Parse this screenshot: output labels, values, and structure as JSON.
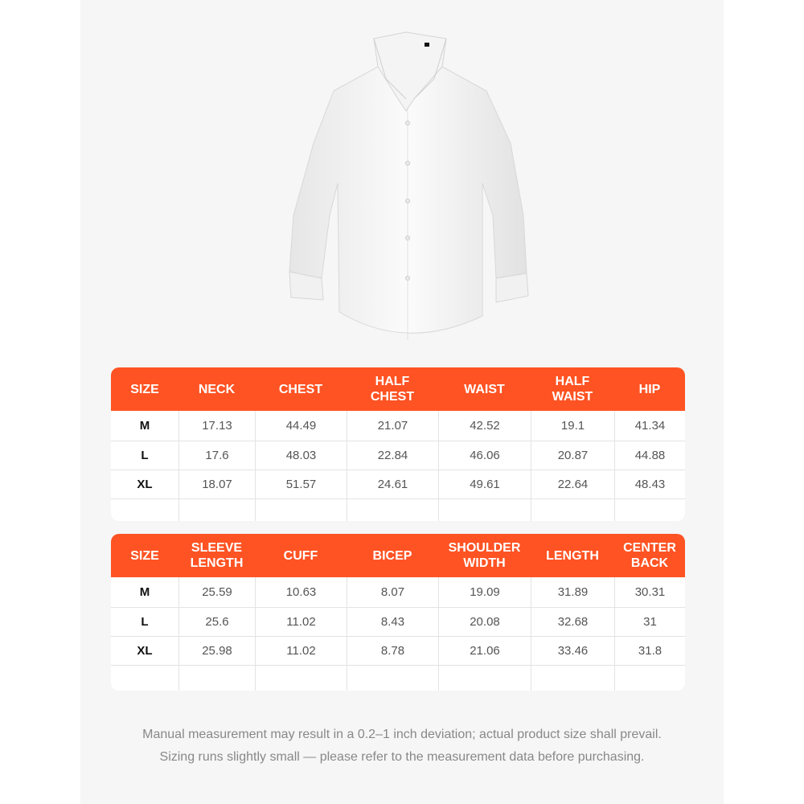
{
  "brand_color": "#ff5323",
  "table1": {
    "headers": [
      "SIZE",
      "NECK",
      "CHEST",
      "HALF\nCHEST",
      "WAIST",
      "HALF\nWAIST",
      "HIP"
    ],
    "rows": [
      [
        "M",
        "17.13",
        "44.49",
        "21.07",
        "42.52",
        "19.1",
        "41.34"
      ],
      [
        "L",
        "17.6",
        "48.03",
        "22.84",
        "46.06",
        "20.87",
        "44.88"
      ],
      [
        "XL",
        "18.07",
        "51.57",
        "24.61",
        "49.61",
        "22.64",
        "48.43"
      ]
    ]
  },
  "table2": {
    "headers": [
      "SIZE",
      "SLEEVE\nLENGTH",
      "CUFF",
      "BICEP",
      "SHOULDER\nWIDTH",
      "LENGTH",
      "CENTER\nBACK"
    ],
    "rows": [
      [
        "M",
        "25.59",
        "10.63",
        "8.07",
        "19.09",
        "31.89",
        "30.31"
      ],
      [
        "L",
        "25.6",
        "11.02",
        "8.43",
        "20.08",
        "32.68",
        "31"
      ],
      [
        "XL",
        "25.98",
        "11.02",
        "8.78",
        "21.06",
        "33.46",
        "31.8"
      ]
    ]
  },
  "notes": [
    "Manual measurement may result in a 0.2–1 inch deviation; actual product size shall prevail.",
    "Sizing runs slightly small — please refer to the measurement data before purchasing."
  ]
}
